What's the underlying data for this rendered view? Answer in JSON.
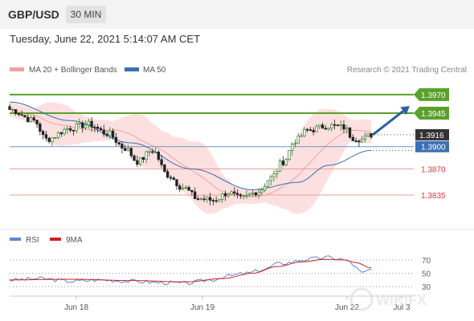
{
  "header": {
    "pair": "GBP/USD",
    "timeframe": "30 MIN"
  },
  "date_line": "Tuesday, June 22, 2021 5:14:07 AM CET",
  "watermark": "WIKIFX",
  "colors": {
    "green": "#5aa02c",
    "blue_level": "#6f95c9",
    "red_level": "#f19a9a",
    "current_box": "#333333",
    "ma50": "#3b6fb0",
    "ma20": "#f2a0a0",
    "band_fill": "#fbd6d6",
    "rsi": "#5b86d8",
    "rsi_ma": "#cc2222",
    "up_candle": "#2f7d24",
    "down_candle": "#222222",
    "arrow": "#2c5f9c"
  },
  "chart_data": [
    {
      "type": "candlestick",
      "legend": [
        {
          "label": "MA 20 + Bollinger Bands",
          "color": "#f2a0a0"
        },
        {
          "label": "MA 50",
          "color": "#3b6fb0"
        }
      ],
      "credit": "Research © 2021 Trading Central",
      "levels": [
        {
          "value": 1.397,
          "label": "1.3970",
          "kind": "resistance"
        },
        {
          "value": 1.3945,
          "label": "1.3945",
          "kind": "resistance"
        },
        {
          "value": 1.3916,
          "label": "1.3916",
          "kind": "current"
        },
        {
          "value": 1.39,
          "label": "1.3900",
          "kind": "pivot"
        },
        {
          "value": 1.387,
          "label": "1.3870",
          "kind": "support"
        },
        {
          "value": 1.3835,
          "label": "1.3835",
          "kind": "support"
        }
      ],
      "x_ticks": [
        "Jun 18",
        "Jun 19",
        "Jun 22",
        "Jul 3"
      ],
      "ylim": [
        1.3795,
        1.3985
      ],
      "bars": 120,
      "close_anchors": [
        [
          0,
          1.395
        ],
        [
          8,
          1.3935
        ],
        [
          12,
          1.391
        ],
        [
          20,
          1.3925
        ],
        [
          26,
          1.393
        ],
        [
          32,
          1.3918
        ],
        [
          38,
          1.3898
        ],
        [
          42,
          1.388
        ],
        [
          47,
          1.3895
        ],
        [
          52,
          1.3862
        ],
        [
          57,
          1.3845
        ],
        [
          62,
          1.383
        ],
        [
          67,
          1.3828
        ],
        [
          72,
          1.3838
        ],
        [
          76,
          1.383
        ],
        [
          82,
          1.384
        ],
        [
          86,
          1.3858
        ],
        [
          90,
          1.388
        ],
        [
          94,
          1.3908
        ],
        [
          98,
          1.3922
        ],
        [
          105,
          1.3928
        ],
        [
          110,
          1.3926
        ],
        [
          113,
          1.3912
        ],
        [
          116,
          1.391
        ],
        [
          119,
          1.3916
        ]
      ],
      "ma50_anchors": [
        [
          0,
          1.396
        ],
        [
          20,
          1.3935
        ],
        [
          40,
          1.3905
        ],
        [
          60,
          1.387
        ],
        [
          80,
          1.3842
        ],
        [
          95,
          1.3852
        ],
        [
          105,
          1.3875
        ],
        [
          119,
          1.3895
        ]
      ],
      "forecast": {
        "from": 1.3916,
        "to": 1.3948
      }
    },
    {
      "type": "line",
      "legend": [
        {
          "label": "RSI",
          "color": "#5b86d8"
        },
        {
          "label": "9MA",
          "color": "#cc2222"
        }
      ],
      "y_ticks": [
        30,
        50,
        70
      ],
      "ylim": [
        18,
        82
      ],
      "rsi_anchors": [
        [
          0,
          40
        ],
        [
          10,
          42
        ],
        [
          20,
          38
        ],
        [
          30,
          40
        ],
        [
          40,
          38
        ],
        [
          50,
          36
        ],
        [
          58,
          35
        ],
        [
          66,
          40
        ],
        [
          72,
          46
        ],
        [
          78,
          50
        ],
        [
          84,
          56
        ],
        [
          88,
          64
        ],
        [
          92,
          66
        ],
        [
          96,
          70
        ],
        [
          100,
          72
        ],
        [
          104,
          74
        ],
        [
          108,
          72
        ],
        [
          112,
          68
        ],
        [
          114,
          58
        ],
        [
          116,
          50
        ],
        [
          119,
          56
        ]
      ],
      "ma_anchors": [
        [
          0,
          40
        ],
        [
          20,
          41
        ],
        [
          40,
          39
        ],
        [
          58,
          37
        ],
        [
          70,
          42
        ],
        [
          80,
          50
        ],
        [
          88,
          60
        ],
        [
          96,
          67
        ],
        [
          104,
          71
        ],
        [
          110,
          70
        ],
        [
          114,
          66
        ],
        [
          119,
          58
        ]
      ]
    }
  ]
}
